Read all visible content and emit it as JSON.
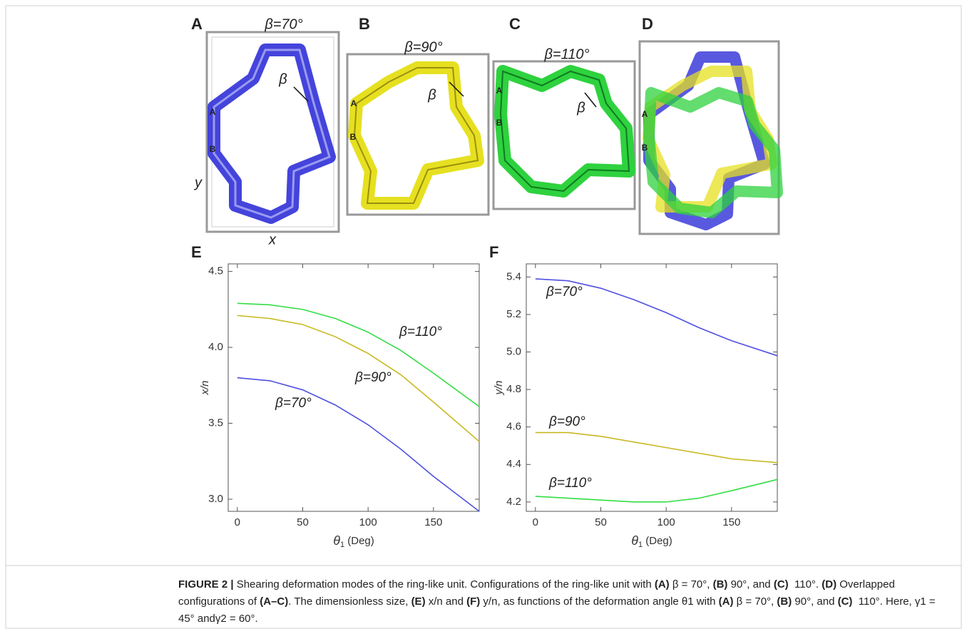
{
  "panels": [
    {
      "label": "A",
      "title": "β=70°",
      "angle": "β",
      "points": [
        "A",
        "B"
      ],
      "xaxis": "x",
      "yaxis": "y"
    },
    {
      "label": "B",
      "title": "β=90°",
      "angle": "β",
      "points": [
        "A",
        "B"
      ]
    },
    {
      "label": "C",
      "title": "β=110°",
      "angle": "β",
      "points": [
        "A",
        "B"
      ]
    },
    {
      "label": "D",
      "points": [
        "A",
        "B"
      ]
    }
  ],
  "chart_data": [
    {
      "type": "line",
      "label": "E",
      "ylabel": "x/n",
      "xlabel": {
        "text": "θ",
        "sub": "1",
        "rest": " (Deg)"
      },
      "x": [
        0,
        25,
        50,
        75,
        100,
        125,
        150,
        185
      ],
      "xlim": [
        -7,
        185
      ],
      "xticks": [
        0,
        50,
        100,
        150
      ],
      "ylim": [
        2.92,
        4.55
      ],
      "yticks": [
        {
          "value": 3,
          "label": "3.0"
        },
        3.5,
        {
          "value": 4,
          "label": "4.0"
        },
        4.5
      ],
      "series": [
        {
          "name": "β=110°",
          "color": "#33dd44",
          "values": [
            4.29,
            4.28,
            4.25,
            4.19,
            4.1,
            3.98,
            3.83,
            3.61
          ]
        },
        {
          "name": "β=90°",
          "color": "#c8b820",
          "values": [
            4.21,
            4.19,
            4.15,
            4.07,
            3.96,
            3.82,
            3.64,
            3.38
          ]
        },
        {
          "name": "β=70°",
          "color": "#5050e0",
          "values": [
            3.8,
            3.78,
            3.72,
            3.62,
            3.49,
            3.33,
            3.15,
            2.92
          ]
        }
      ]
    },
    {
      "type": "line",
      "label": "F",
      "ylabel": "y/n",
      "xlabel": {
        "text": "θ",
        "sub": "1",
        "rest": " (Deg)"
      },
      "x": [
        0,
        25,
        50,
        75,
        100,
        125,
        150,
        185
      ],
      "xlim": [
        -7,
        185
      ],
      "xticks": [
        0,
        50,
        100,
        150
      ],
      "ylim": [
        4.15,
        5.47
      ],
      "yticks": [
        4.2,
        4.4,
        4.6,
        4.8,
        {
          "value": 5,
          "label": "5.0"
        },
        5.2,
        5.4
      ],
      "series": [
        {
          "name": "β=70°",
          "color": "#5050e0",
          "values": [
            5.39,
            5.38,
            5.34,
            5.28,
            5.21,
            5.13,
            5.06,
            4.98
          ]
        },
        {
          "name": "β=90°",
          "color": "#c8b820",
          "values": [
            4.57,
            4.57,
            4.55,
            4.52,
            4.49,
            4.46,
            4.43,
            4.41
          ]
        },
        {
          "name": "β=110°",
          "color": "#33dd44",
          "values": [
            4.23,
            4.22,
            4.21,
            4.2,
            4.2,
            4.22,
            4.26,
            4.32
          ]
        }
      ]
    }
  ],
  "caption": [
    {
      "text": "FIGURE 2 |",
      "bold": true
    },
    {
      "text": " Shearing deformation modes of the ring-like unit. Configurations of the ring-like unit with "
    },
    {
      "text": "(A)",
      "bold": true
    },
    {
      "text": " β = 70°, "
    },
    {
      "text": "(B)",
      "bold": true
    },
    {
      "text": " 90°, and "
    },
    {
      "text": "(C)",
      "bold": true
    },
    {
      "text": "  110°. "
    },
    {
      "text": "(D)",
      "bold": true
    },
    {
      "text": " Overlapped configurations of "
    },
    {
      "text": "(A–C)",
      "bold": true
    },
    {
      "text": ". The dimensionless size, "
    },
    {
      "text": "(E)",
      "bold": true
    },
    {
      "text": " x/n and "
    },
    {
      "text": "(F)",
      "bold": true
    },
    {
      "text": " y/n, as functions of the deformation angle θ1 with "
    },
    {
      "text": "(A)",
      "bold": true
    },
    {
      "text": " β = 70°, "
    },
    {
      "text": "(B)",
      "bold": true
    },
    {
      "text": " 90°, and "
    },
    {
      "text": "(C)",
      "bold": true
    },
    {
      "text": "  110°. Here, γ1 = 45° andγ2 = 60°."
    }
  ]
}
